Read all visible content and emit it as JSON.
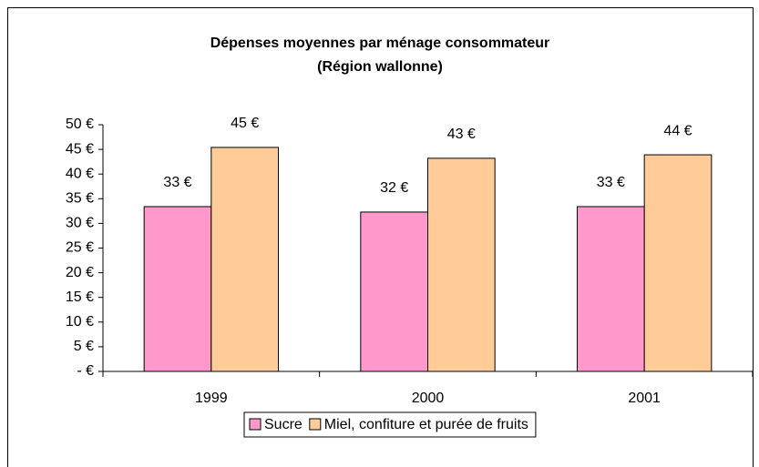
{
  "chart_data": {
    "type": "bar",
    "title": [
      "Dépenses moyennes par ménage consommateur",
      "(Région wallonne)"
    ],
    "categories": [
      "1999",
      "2000",
      "2001"
    ],
    "series": [
      {
        "name": "Sucre",
        "color": "#ff99cc",
        "values": [
          33.4,
          32.3,
          33.4
        ],
        "value_labels": [
          "33 €",
          "32 €",
          "33 €"
        ]
      },
      {
        "name": "Miel, confiture et purée de fruits",
        "color": "#ffcc99",
        "values": [
          45.4,
          43.2,
          43.9
        ],
        "value_labels": [
          "45 €",
          "43 €",
          "44 €"
        ]
      }
    ],
    "ylim": [
      0,
      50
    ],
    "yticks": [
      {
        "value": 0,
        "label": "-   €"
      },
      {
        "value": 5,
        "label": "5 €"
      },
      {
        "value": 10,
        "label": "10 €"
      },
      {
        "value": 15,
        "label": "15 €"
      },
      {
        "value": 20,
        "label": "20 €"
      },
      {
        "value": 25,
        "label": "25 €"
      },
      {
        "value": 30,
        "label": "30 €"
      },
      {
        "value": 35,
        "label": "35 €"
      },
      {
        "value": 40,
        "label": "40 €"
      },
      {
        "value": 45,
        "label": "45 €"
      },
      {
        "value": 50,
        "label": "50 €"
      }
    ],
    "legend": "bottom"
  }
}
